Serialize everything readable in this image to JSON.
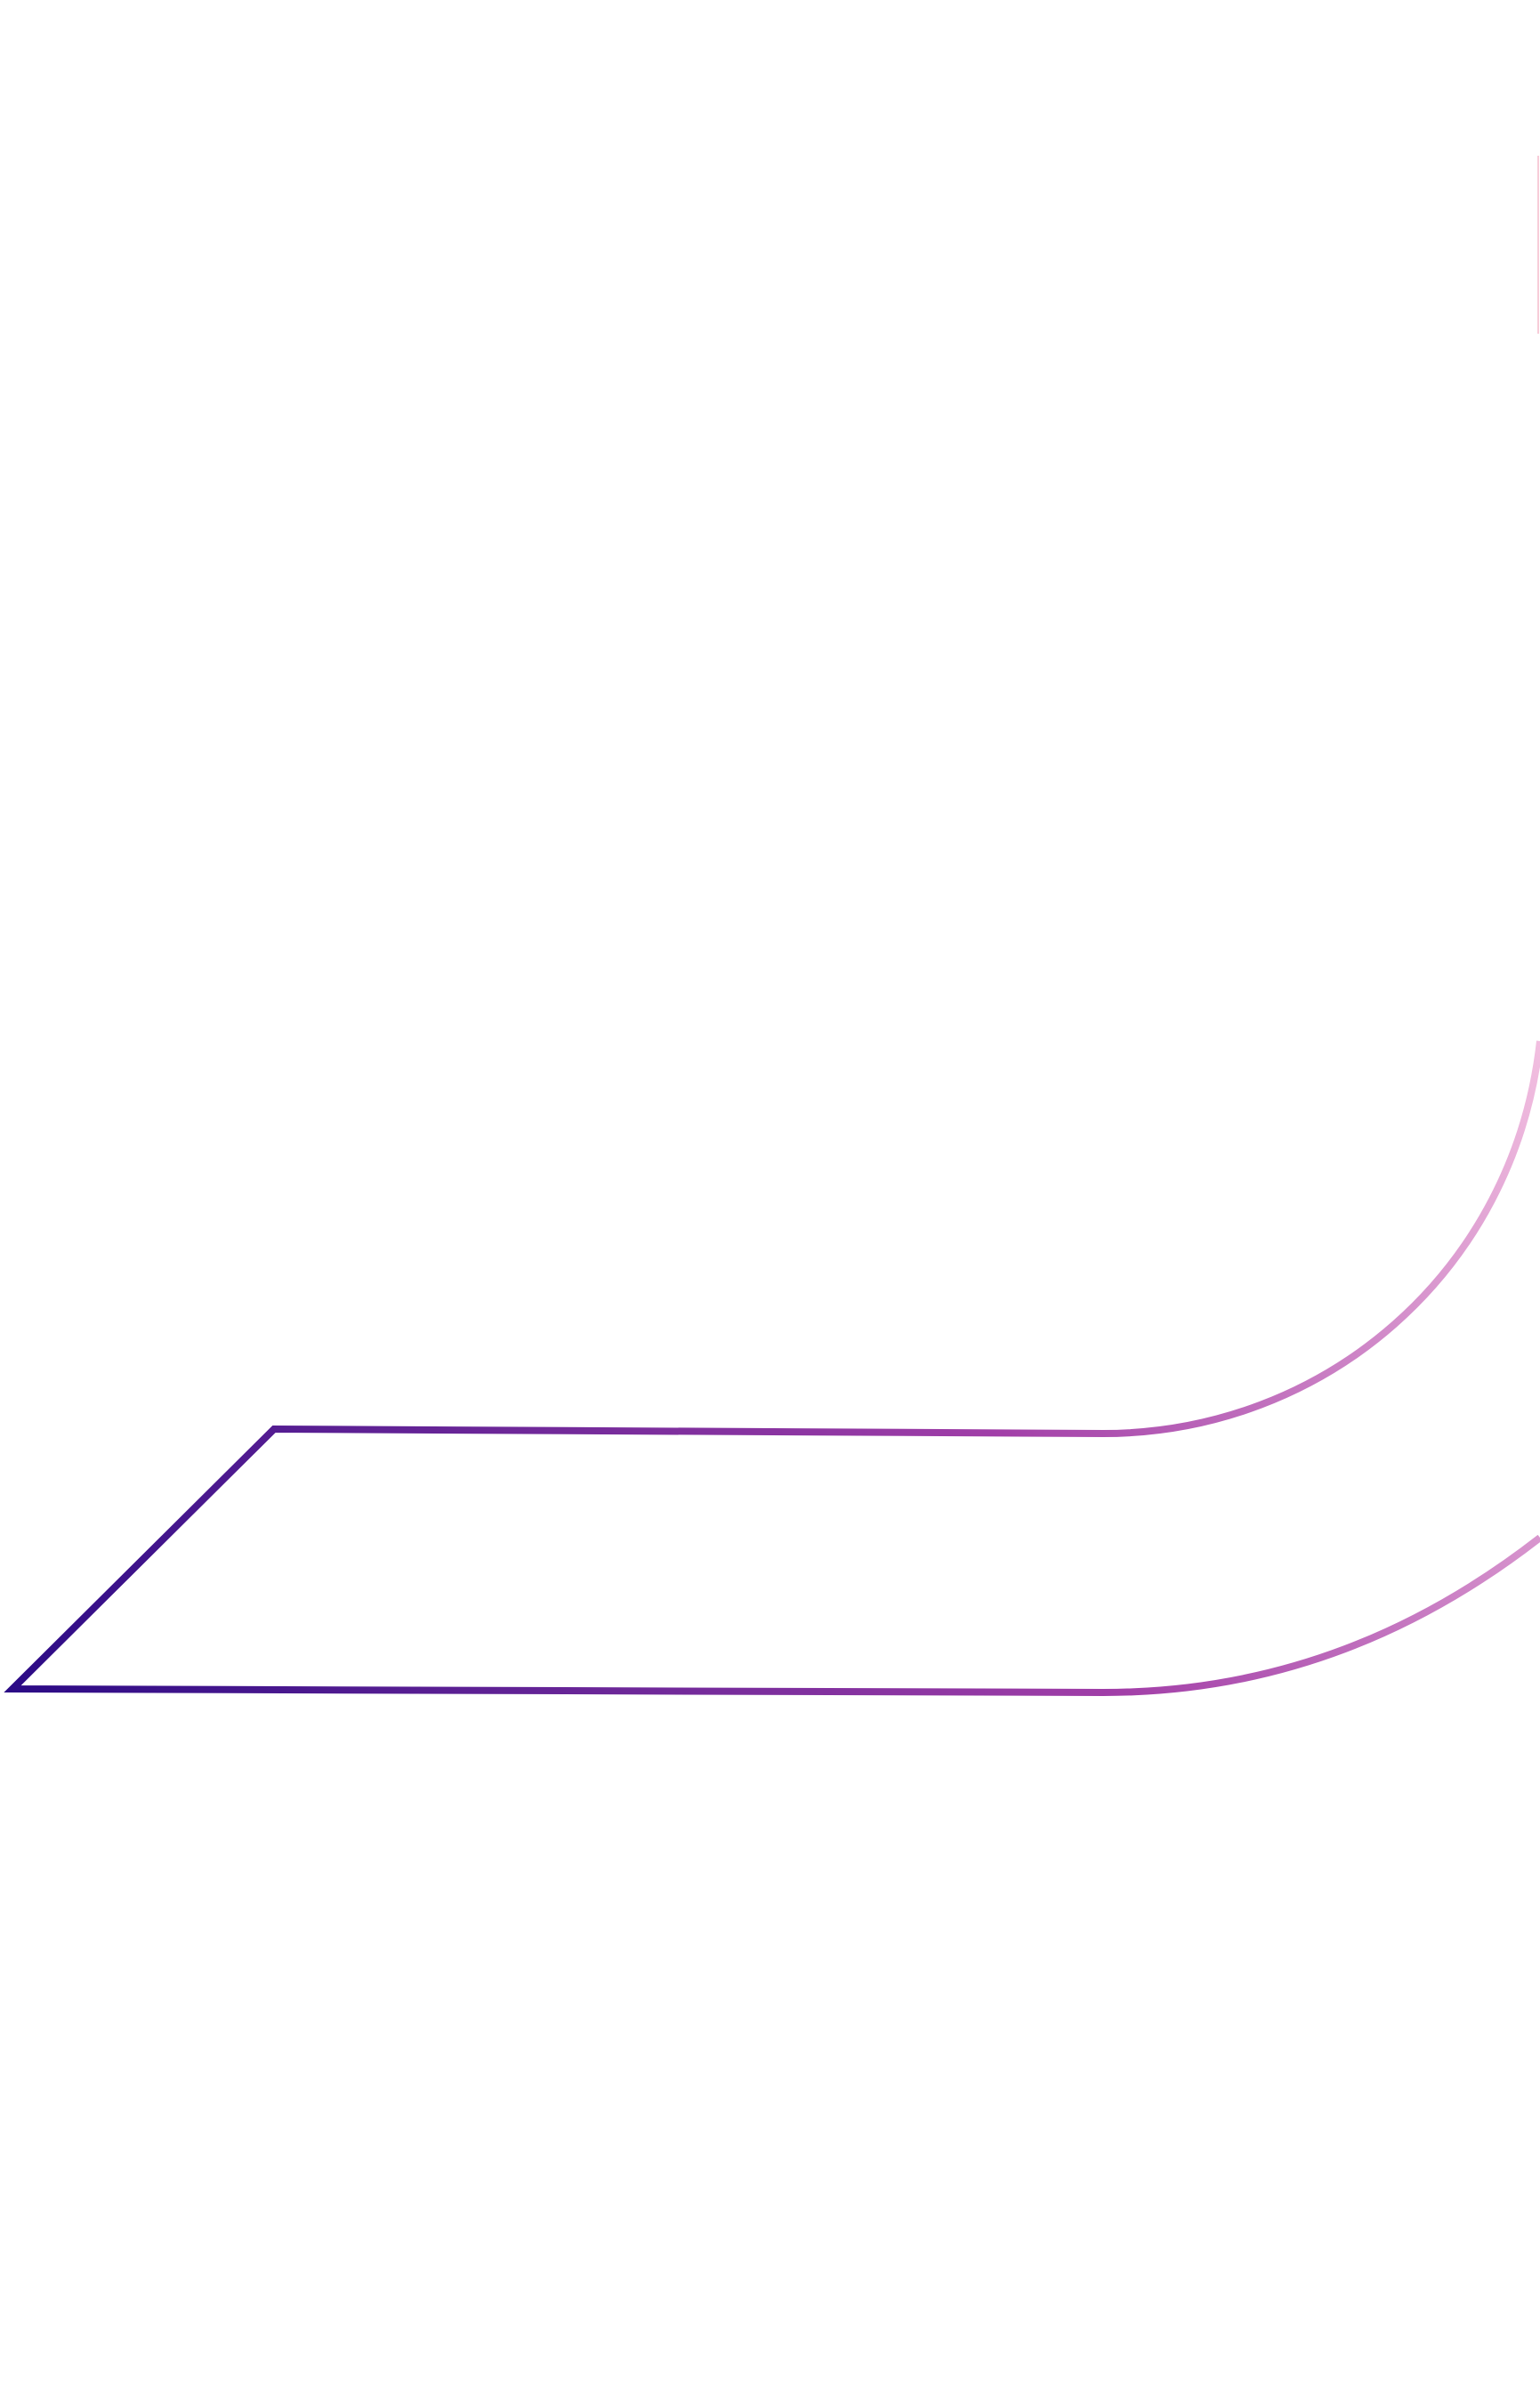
{
  "artwork": {
    "background_color": "#ffffff",
    "stroke_gradient": {
      "start_color": "#2a0a85",
      "mid_color": "#a23fa8",
      "end_color": "#f5c4e2"
    }
  }
}
